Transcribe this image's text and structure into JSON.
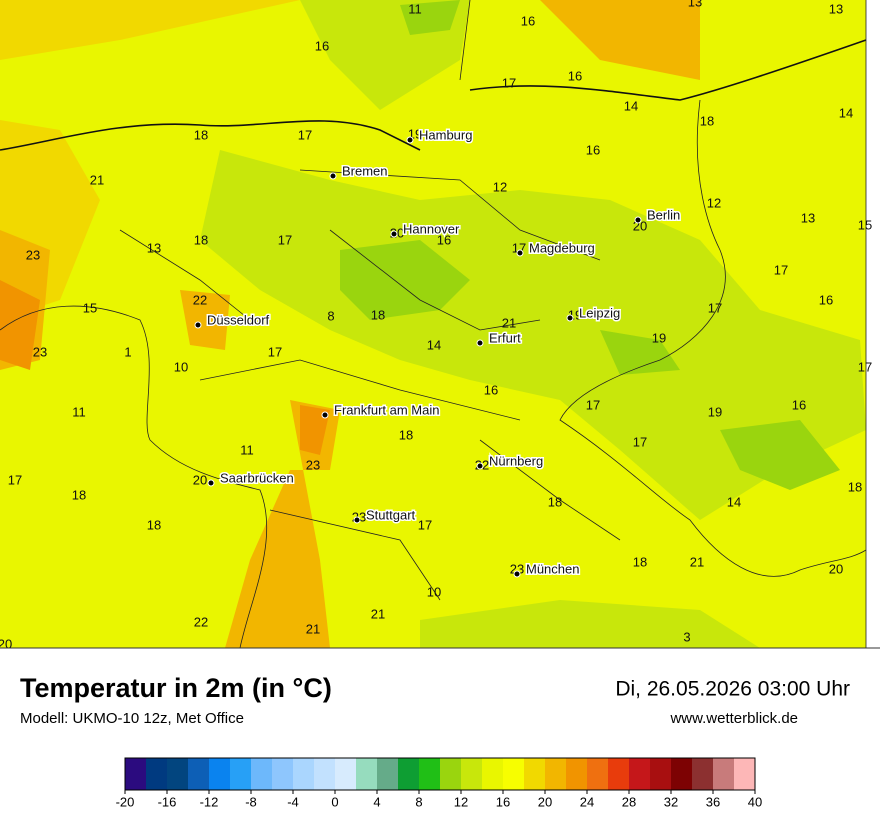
{
  "header": {
    "title": "Temperatur in 2m (in °C)",
    "model": "Modell: UKMO-10 12z, Met Office",
    "datetime": "Di, 26.05.2026 03:00 Uhr",
    "website": "www.wetterblick.de"
  },
  "map": {
    "cities": [
      "Hamburg",
      "Bremen",
      "Hannover",
      "Magdeburg",
      "Berlin",
      "Düsseldorf",
      "Leipzig",
      "Erfurt",
      "Frankfurt am Main",
      "Nürnberg",
      "Saarbrücken",
      "Stuttgart",
      "München"
    ],
    "temperature_labels": [
      11,
      16,
      13,
      13,
      16,
      17,
      16,
      14,
      14,
      18,
      18,
      17,
      19,
      16,
      21,
      12,
      12,
      13,
      15,
      23,
      13,
      18,
      17,
      20,
      16,
      17,
      20,
      17,
      16,
      22,
      15,
      8,
      18,
      21,
      19,
      17,
      23,
      1,
      17,
      14,
      19,
      17,
      10,
      16,
      11,
      17,
      19,
      16,
      18,
      11,
      17,
      23,
      22,
      17,
      20,
      18,
      18,
      14,
      18,
      18,
      23,
      17,
      23,
      18,
      21,
      20,
      10,
      21,
      22,
      21,
      3,
      20
    ]
  },
  "legend": {
    "ticks": [
      -20,
      -16,
      -12,
      -8,
      -4,
      0,
      4,
      8,
      12,
      16,
      20,
      24,
      28,
      32,
      36,
      40
    ],
    "min": -20,
    "max": 40,
    "colors": [
      "#2b0b7f",
      "#003a80",
      "#02457f",
      "#0d5fb6",
      "#0a83ef",
      "#27a0f6",
      "#6db8fb",
      "#8ec6fd",
      "#aad6fe",
      "#c2e1fe",
      "#d7ebfd",
      "#96dcbe",
      "#65ab89",
      "#0e9e33",
      "#20bf16",
      "#9ad50e",
      "#c8e70b",
      "#e9f600",
      "#f7fe00",
      "#f1d900",
      "#f2b600",
      "#f19400",
      "#ef7010",
      "#e83c0c",
      "#c5171a",
      "#a80f10",
      "#7d0203",
      "#8c3030",
      "#c87b7b",
      "#fdb7b7"
    ]
  }
}
